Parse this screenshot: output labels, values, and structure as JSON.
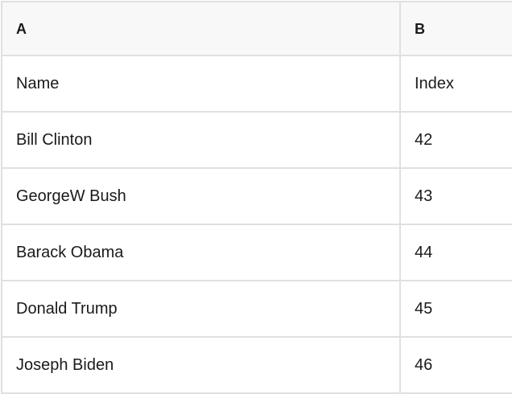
{
  "table": {
    "columns": [
      {
        "id": "A",
        "label": "A"
      },
      {
        "id": "B",
        "label": "B"
      }
    ],
    "rows": [
      {
        "name": "Name",
        "index": "Index"
      },
      {
        "name": "Bill Clinton",
        "index": "42"
      },
      {
        "name": "GeorgeW Bush",
        "index": "43"
      },
      {
        "name": "Barack Obama",
        "index": "44"
      },
      {
        "name": "Donald Trump",
        "index": "45"
      },
      {
        "name": "Joseph Biden",
        "index": "46"
      }
    ]
  },
  "colors": {
    "border": "#e0e0e0",
    "header_bg": "#f8f8f8",
    "cell_bg": "#ffffff",
    "text": "#1a1a1a"
  }
}
